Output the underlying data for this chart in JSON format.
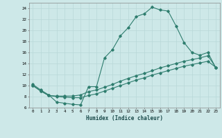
{
  "xlabel": "Humidex (Indice chaleur)",
  "ylabel": "",
  "bg_color": "#cde8e8",
  "line_color": "#2e7d6e",
  "grid_color": "#b8d8d8",
  "xlim": [
    -0.5,
    23.5
  ],
  "ylim": [
    6,
    25
  ],
  "xticks": [
    0,
    1,
    2,
    3,
    4,
    5,
    6,
    7,
    8,
    9,
    10,
    11,
    12,
    13,
    14,
    15,
    16,
    17,
    18,
    19,
    20,
    21,
    22,
    23
  ],
  "yticks": [
    6,
    8,
    10,
    12,
    14,
    16,
    18,
    20,
    22,
    24
  ],
  "curve1_x": [
    0,
    1,
    2,
    3,
    4,
    5,
    6,
    7,
    8,
    9,
    10,
    11,
    12,
    13,
    14,
    15,
    16,
    17,
    18,
    19,
    20,
    21,
    22,
    23
  ],
  "curve1_y": [
    10.2,
    9.2,
    8.3,
    7.0,
    6.8,
    6.6,
    6.5,
    9.8,
    9.8,
    15.0,
    16.5,
    19.0,
    20.5,
    22.5,
    23.0,
    24.2,
    23.7,
    23.5,
    20.8,
    17.8,
    16.0,
    15.5,
    16.0,
    13.2
  ],
  "curve2_x": [
    0,
    1,
    2,
    3,
    4,
    5,
    6,
    7,
    8,
    9,
    10,
    11,
    12,
    13,
    14,
    15,
    16,
    17,
    18,
    19,
    20,
    21,
    22,
    23
  ],
  "curve2_y": [
    10.0,
    9.0,
    8.2,
    8.1,
    8.1,
    8.1,
    8.3,
    8.9,
    9.2,
    9.7,
    10.2,
    10.8,
    11.3,
    11.8,
    12.2,
    12.7,
    13.2,
    13.6,
    14.0,
    14.4,
    14.7,
    15.0,
    15.4,
    13.3
  ],
  "curve3_x": [
    0,
    1,
    2,
    3,
    4,
    5,
    6,
    7,
    8,
    9,
    10,
    11,
    12,
    13,
    14,
    15,
    16,
    17,
    18,
    19,
    20,
    21,
    22,
    23
  ],
  "curve3_y": [
    10.0,
    9.0,
    8.2,
    8.0,
    7.9,
    7.8,
    7.8,
    8.2,
    8.5,
    9.0,
    9.5,
    10.0,
    10.5,
    11.0,
    11.4,
    11.9,
    12.3,
    12.7,
    13.1,
    13.5,
    13.8,
    14.1,
    14.4,
    13.3
  ]
}
